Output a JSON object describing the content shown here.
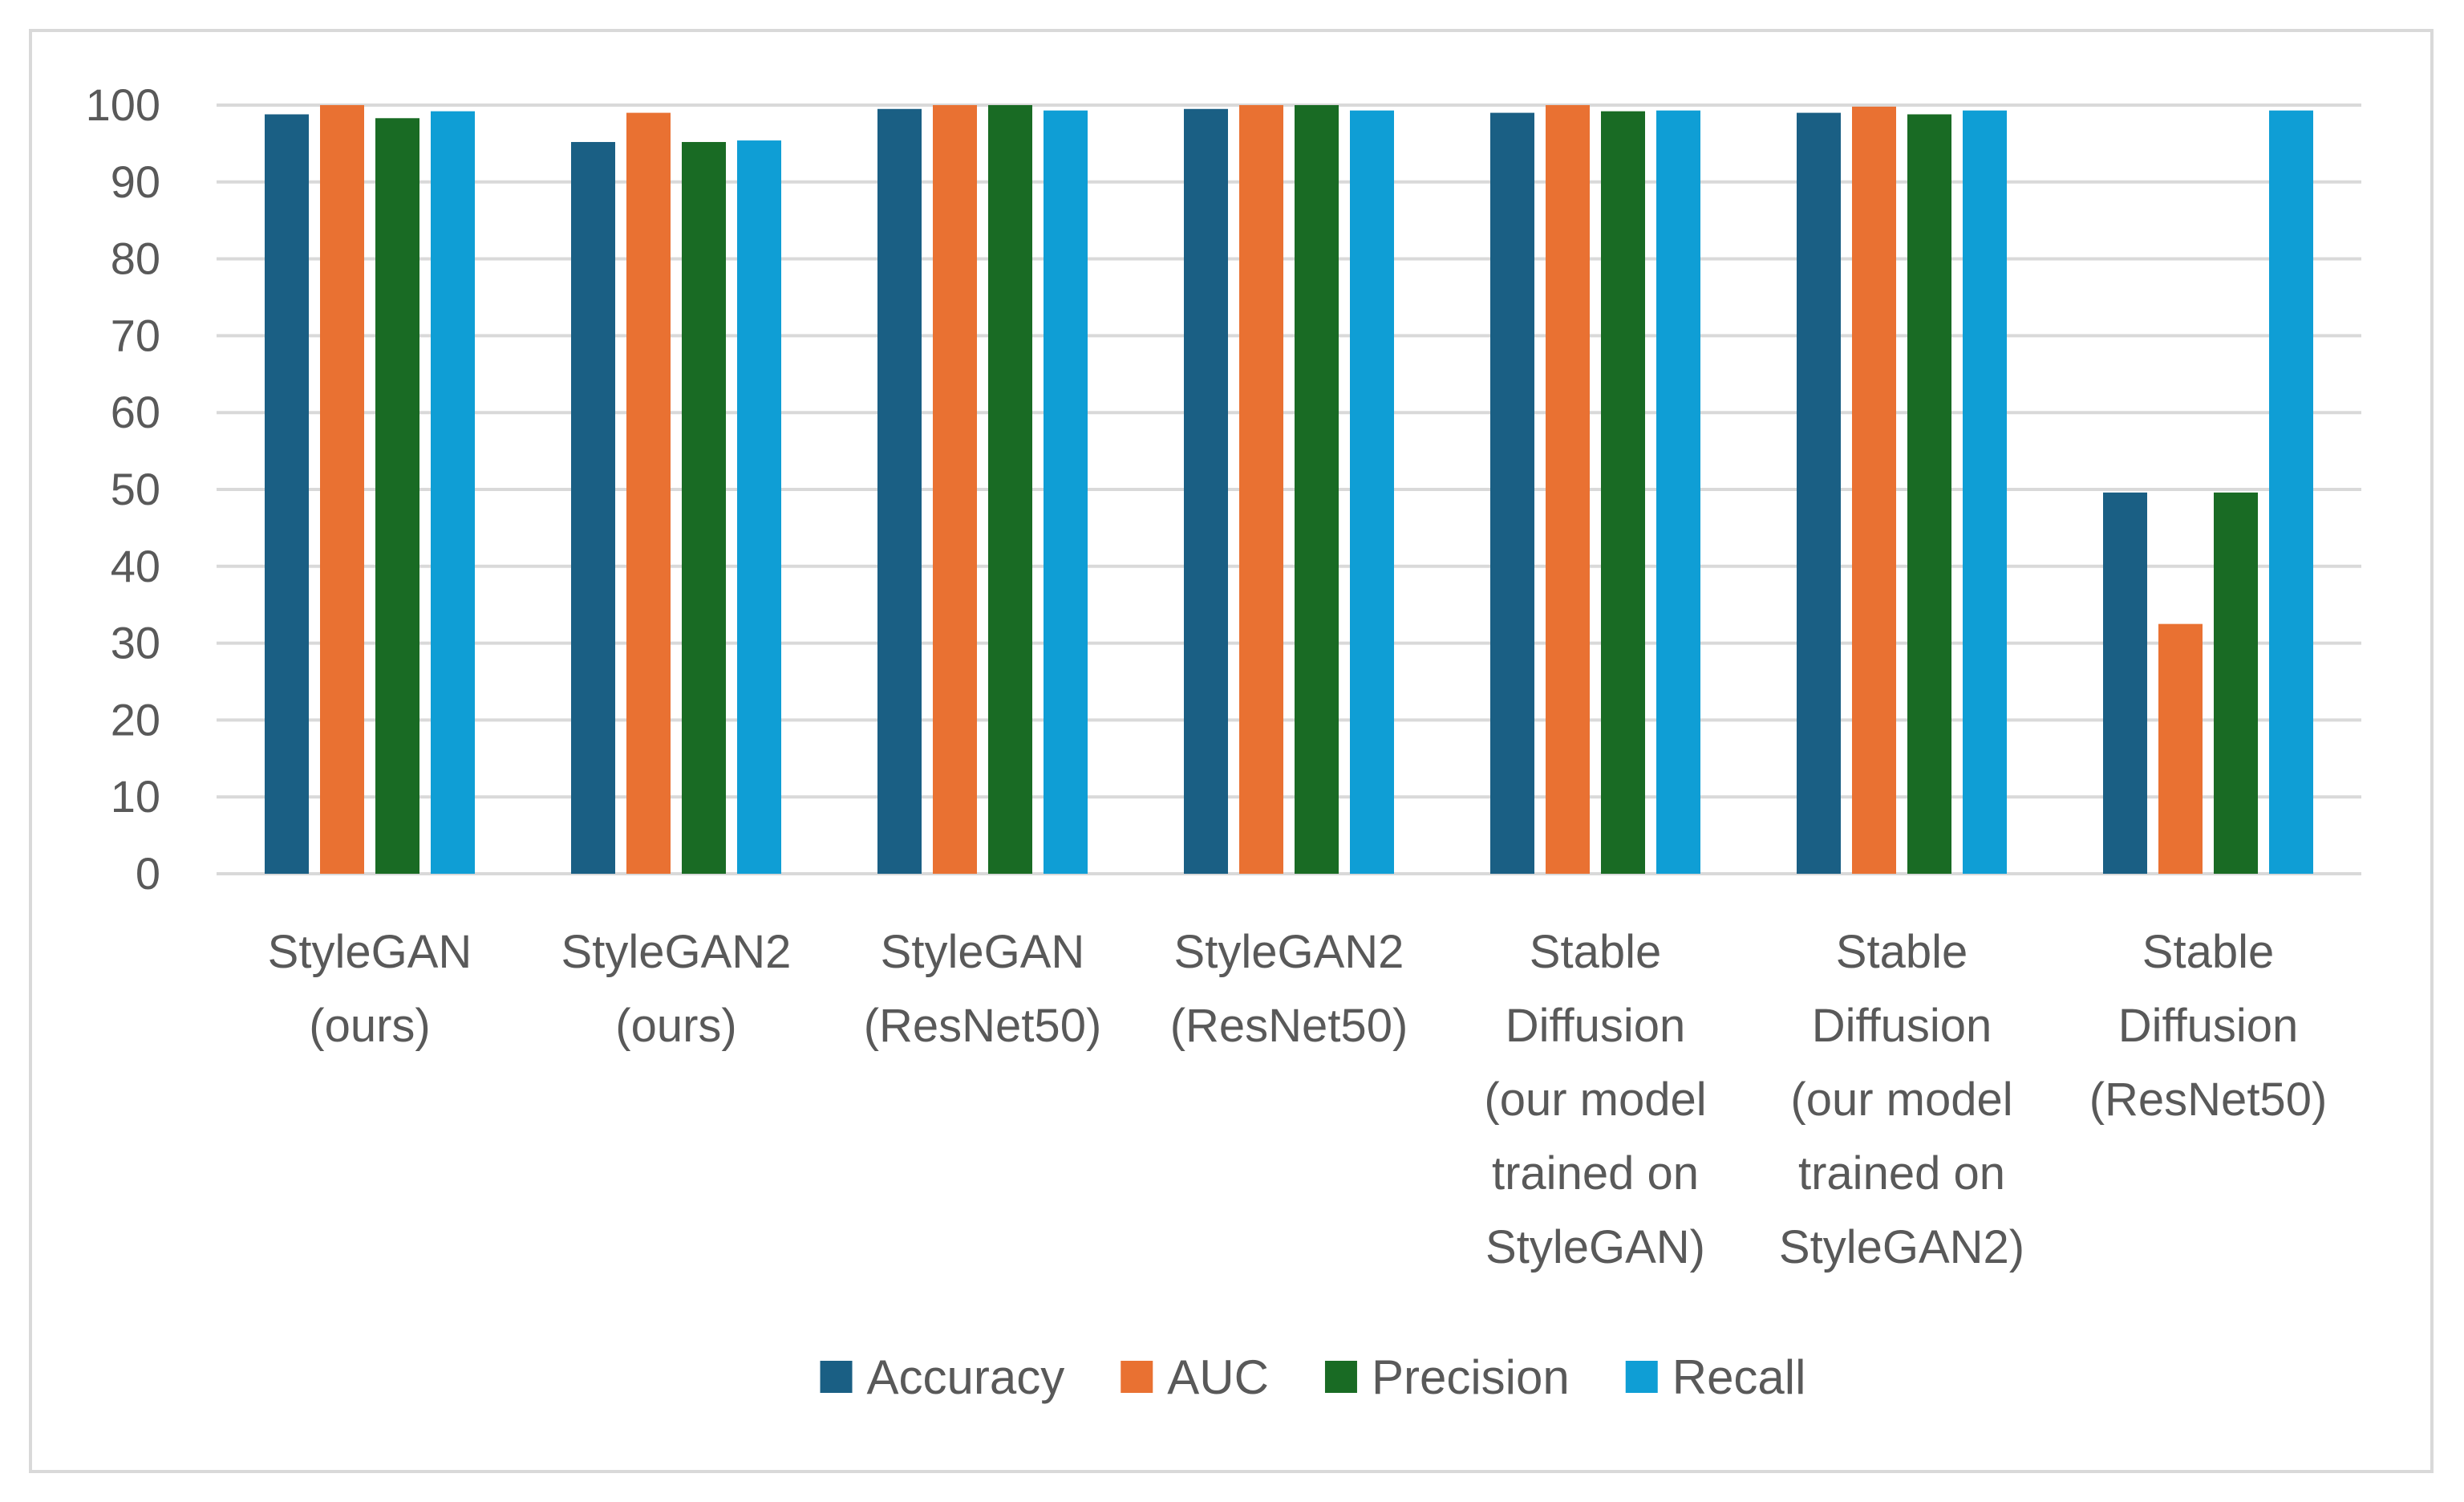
{
  "chart_data": {
    "type": "bar",
    "title": "",
    "xlabel": "",
    "ylabel": "",
    "ylim": [
      0,
      100
    ],
    "yticks": [
      0,
      10,
      20,
      30,
      40,
      50,
      60,
      70,
      80,
      90,
      100
    ],
    "grid": true,
    "legend_position": "bottom",
    "categories": [
      [
        "StyleGAN",
        "(ours)"
      ],
      [
        "StyleGAN2",
        "(ours)"
      ],
      [
        "StyleGAN",
        "(ResNet50)"
      ],
      [
        "StyleGAN2",
        "(ResNet50)"
      ],
      [
        "Stable",
        "Diffusion",
        "(our model",
        "trained on",
        "StyleGAN)"
      ],
      [
        "Stable",
        "Diffusion",
        "(our model",
        "trained on",
        "StyleGAN2)"
      ],
      [
        "Stable",
        "Diffusion",
        "(ResNet50)"
      ]
    ],
    "series": [
      {
        "name": "Accuracy",
        "color": "#1a5f84",
        "values": [
          98.8,
          95.2,
          99.5,
          99.5,
          99.0,
          99.0,
          49.6
        ]
      },
      {
        "name": "AUC",
        "color": "#e97132",
        "values": [
          100,
          99.0,
          100,
          100,
          100,
          99.8,
          32.5
        ]
      },
      {
        "name": "Precision",
        "color": "#196b24",
        "values": [
          98.3,
          95.2,
          100,
          100,
          99.2,
          98.8,
          49.6
        ]
      },
      {
        "name": "Recall",
        "color": "#0f9ed5",
        "values": [
          99.2,
          95.4,
          99.3,
          99.3,
          99.3,
          99.3,
          99.3
        ]
      }
    ],
    "gridline_color": "#d9d9d9",
    "text_color": "#595959"
  }
}
